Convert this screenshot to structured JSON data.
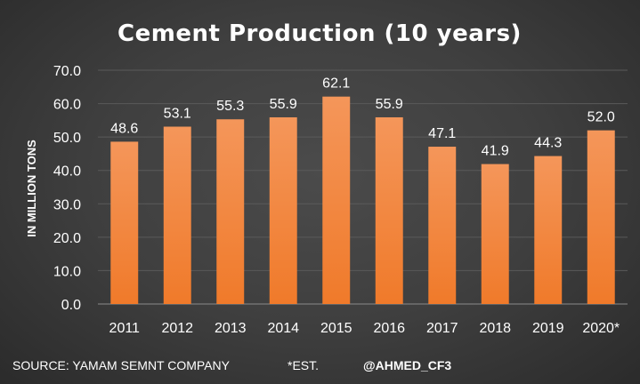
{
  "chart_data": {
    "type": "bar",
    "title": "Cement Production (10 years)",
    "ylabel": "IN MILLION TONS",
    "xlabel": "",
    "categories": [
      "2011",
      "2012",
      "2013",
      "2014",
      "2015",
      "2016",
      "2017",
      "2018",
      "2019",
      "2020*"
    ],
    "values": [
      48.6,
      53.1,
      55.3,
      55.9,
      62.1,
      55.9,
      47.1,
      41.9,
      44.3,
      52.0
    ],
    "value_labels": [
      "48.6",
      "53.1",
      "55.3",
      "55.9",
      "62.1",
      "55.9",
      "47.1",
      "41.9",
      "44.3",
      "52.0"
    ],
    "yticks": [
      0,
      10,
      20,
      30,
      40,
      50,
      60,
      70
    ],
    "ytick_labels": [
      "0.0",
      "10.0",
      "20.0",
      "30.0",
      "40.0",
      "50.0",
      "60.0",
      "70.0"
    ],
    "ylim": [
      0,
      70
    ],
    "grid": true,
    "legend": "none",
    "bar_color": "#f07a2a",
    "bar_color_light": "#f4965a"
  },
  "footer": {
    "source": "SOURCE: YAMAM SEMNT COMPANY",
    "est": "*EST.",
    "handle": "@AHMED_CF3"
  },
  "colors": {
    "background": "#404040",
    "text": "#ffffff",
    "gridline": "#5a5a5a"
  }
}
